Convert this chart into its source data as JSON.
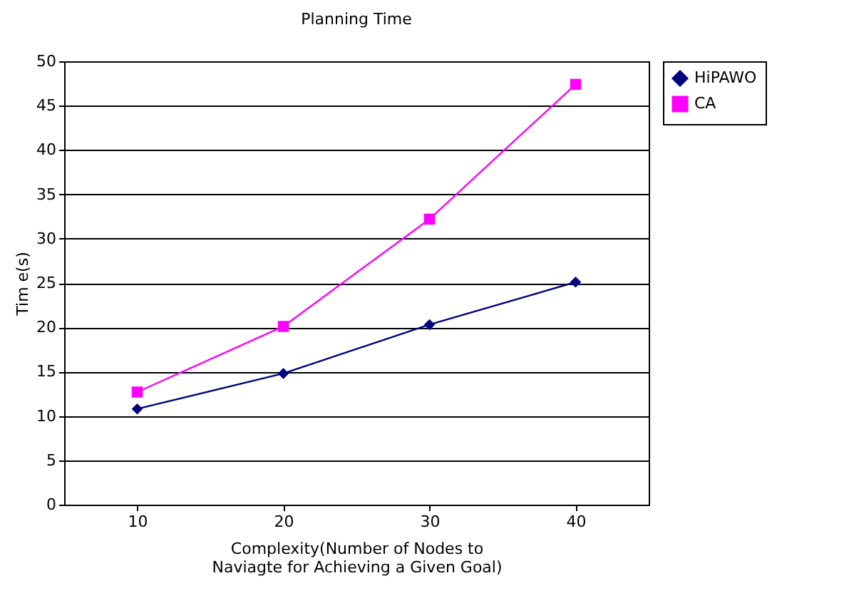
{
  "chart_data": {
    "type": "line",
    "title": "Planning Time",
    "xlabel": "Complexity(Number of Nodes to Naviagte for Achieving a Given Goal)",
    "ylabel": "Tim e(s)",
    "categories": [
      "10",
      "20",
      "30",
      "40"
    ],
    "series": [
      {
        "name": "HiPAWO",
        "color": "#000080",
        "marker": "diamond",
        "values": [
          10.8,
          14.8,
          20.3,
          25.1
        ]
      },
      {
        "name": "CA",
        "color": "#ff00ff",
        "marker": "square",
        "values": [
          12.7,
          20.1,
          32.2,
          47.4
        ]
      }
    ],
    "ylim": [
      0,
      50
    ],
    "yticks": [
      0,
      5,
      10,
      15,
      20,
      25,
      30,
      35,
      40,
      45,
      50
    ],
    "grid": "y",
    "legend": "right"
  }
}
